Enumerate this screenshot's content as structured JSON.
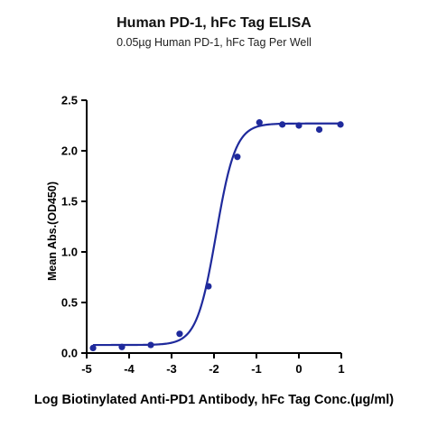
{
  "chart_data": {
    "type": "scatter",
    "title": "Human PD-1, hFc Tag ELISA",
    "subtitle": "0.05µg Human PD-1, hFc Tag Per Well",
    "xlabel": "Log Biotinylated Anti-PD1 Antibody, hFc Tag Conc.(µg/ml)",
    "ylabel": "Mean Abs.(OD450)",
    "xlim": [
      -5,
      1
    ],
    "ylim": [
      0,
      2.5
    ],
    "x_ticks": [
      -5,
      -4,
      -3,
      -2,
      -1,
      0,
      1
    ],
    "x_tick_labels": [
      "-5",
      "-4",
      "-3",
      "-2",
      "-1",
      "0",
      "1"
    ],
    "y_ticks": [
      0,
      0.5,
      1,
      1.5,
      2,
      2.5
    ],
    "y_tick_labels": [
      "0.0",
      "0.5",
      "1.0",
      "1.5",
      "2.0",
      "2.5"
    ],
    "grid": false,
    "legend": "none",
    "series": [
      {
        "points": [
          {
            "x": -4.85,
            "y": 0.05
          },
          {
            "x": -4.17,
            "y": 0.06
          },
          {
            "x": -3.49,
            "y": 0.08
          },
          {
            "x": -2.81,
            "y": 0.19
          },
          {
            "x": -2.13,
            "y": 0.66
          },
          {
            "x": -1.45,
            "y": 1.94
          },
          {
            "x": -0.93,
            "y": 2.28
          },
          {
            "x": -0.39,
            "y": 2.26
          },
          {
            "x": 0.0,
            "y": 2.25
          },
          {
            "x": 0.48,
            "y": 2.21
          },
          {
            "x": 0.98,
            "y": 2.26
          }
        ],
        "fit": {
          "model": "four-parameter logistic",
          "bottom": 0.08,
          "top": 2.27,
          "log_ec50": -1.95,
          "hill_slope": 1.9
        }
      }
    ],
    "colors": {
      "series": "#1f2a9c",
      "axis": "#000000"
    }
  }
}
